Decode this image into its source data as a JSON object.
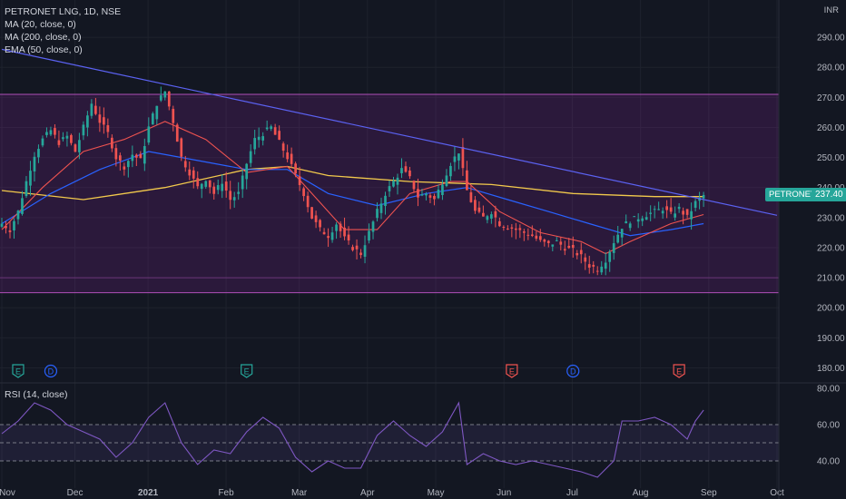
{
  "header": {
    "title": "PETRONET LNG, 1D, NSE",
    "indicators": [
      "MA (20, close, 0)",
      "MA (200, close, 0)",
      "EMA (50, close, 0)"
    ],
    "currency": "INR"
  },
  "price_tag": {
    "symbol": "PETRONET",
    "value": "237.40"
  },
  "rsi": {
    "label": "RSI (14, close)"
  },
  "events": [
    {
      "type": "E",
      "color": "#26a69a",
      "x_label": "Nov"
    },
    {
      "type": "D",
      "color": "#2962ff",
      "x_label": "Dec"
    },
    {
      "type": "E",
      "color": "#26a69a",
      "x_label": "Feb"
    },
    {
      "type": "E",
      "color": "#ef5350",
      "x_label": "Jun"
    },
    {
      "type": "D",
      "color": "#2962ff",
      "x_label": "Jul"
    },
    {
      "type": "E",
      "color": "#ef5350",
      "x_label": "Aug"
    }
  ],
  "colors": {
    "up": "#26a69a",
    "down": "#ef5350",
    "ma20": "#ef5350",
    "ma200": "#2962ff",
    "ema50": "#f2c94c",
    "trend": "#5b62f2",
    "channel": "#b04fb8",
    "rsi": "#7e57c2"
  },
  "chart_data": {
    "type": "candlestick",
    "price_axis": {
      "ticks": [
        180,
        190,
        200,
        210,
        220,
        230,
        240,
        250,
        260,
        270,
        280,
        290
      ],
      "range": [
        175,
        300
      ]
    },
    "rsi_axis": {
      "ticks": [
        40,
        60,
        80
      ],
      "range": [
        25,
        82
      ]
    },
    "x_ticks": [
      "Nov",
      "Dec",
      "2021",
      "Feb",
      "Mar",
      "Apr",
      "May",
      "Jun",
      "Jul",
      "Aug",
      "Sep",
      "Oct"
    ],
    "channel": {
      "top": 271,
      "bottom": 205
    },
    "close_path": [
      [
        0,
        228
      ],
      [
        2,
        226
      ],
      [
        4,
        232
      ],
      [
        6,
        242
      ],
      [
        8,
        251
      ],
      [
        10,
        256
      ],
      [
        12,
        259
      ],
      [
        14,
        255
      ],
      [
        16,
        257
      ],
      [
        18,
        252
      ],
      [
        20,
        260
      ],
      [
        22,
        268
      ],
      [
        24,
        262
      ],
      [
        26,
        258
      ],
      [
        28,
        250
      ],
      [
        30,
        247
      ],
      [
        32,
        251
      ],
      [
        34,
        249
      ],
      [
        36,
        260
      ],
      [
        38,
        268
      ],
      [
        40,
        272
      ],
      [
        42,
        262
      ],
      [
        44,
        250
      ],
      [
        46,
        245
      ],
      [
        48,
        240
      ],
      [
        50,
        243
      ],
      [
        52,
        238
      ],
      [
        54,
        242
      ],
      [
        56,
        236
      ],
      [
        58,
        238
      ],
      [
        60,
        248
      ],
      [
        62,
        256
      ],
      [
        64,
        258
      ],
      [
        66,
        260
      ],
      [
        68,
        255
      ],
      [
        70,
        250
      ],
      [
        72,
        244
      ],
      [
        74,
        238
      ],
      [
        76,
        230
      ],
      [
        78,
        226
      ],
      [
        80,
        224
      ],
      [
        82,
        228
      ],
      [
        84,
        223
      ],
      [
        86,
        220
      ],
      [
        88,
        218
      ],
      [
        90,
        225
      ],
      [
        92,
        232
      ],
      [
        94,
        238
      ],
      [
        96,
        242
      ],
      [
        98,
        246
      ],
      [
        100,
        243
      ],
      [
        102,
        237
      ],
      [
        104,
        238
      ],
      [
        106,
        236
      ],
      [
        108,
        242
      ],
      [
        110,
        248
      ],
      [
        112,
        252
      ],
      [
        114,
        239
      ],
      [
        116,
        232
      ],
      [
        118,
        230
      ],
      [
        120,
        232
      ],
      [
        122,
        228
      ],
      [
        124,
        227
      ],
      [
        126,
        226
      ],
      [
        128,
        225
      ],
      [
        130,
        224
      ],
      [
        132,
        222
      ],
      [
        134,
        221
      ],
      [
        136,
        222
      ],
      [
        138,
        220
      ],
      [
        140,
        219
      ],
      [
        142,
        217
      ],
      [
        144,
        214
      ],
      [
        146,
        213
      ],
      [
        148,
        216
      ],
      [
        150,
        222
      ],
      [
        152,
        227
      ],
      [
        154,
        229
      ],
      [
        156,
        230
      ],
      [
        158,
        231
      ],
      [
        160,
        232
      ],
      [
        162,
        233
      ],
      [
        164,
        231
      ],
      [
        166,
        233
      ],
      [
        168,
        230
      ],
      [
        170,
        235
      ],
      [
        172,
        237.4
      ]
    ],
    "ma20_path": [
      [
        0,
        226
      ],
      [
        10,
        240
      ],
      [
        20,
        252
      ],
      [
        30,
        256
      ],
      [
        40,
        262
      ],
      [
        50,
        256
      ],
      [
        60,
        245
      ],
      [
        70,
        247
      ],
      [
        76,
        238
      ],
      [
        84,
        226
      ],
      [
        92,
        226
      ],
      [
        100,
        238
      ],
      [
        110,
        242
      ],
      [
        114,
        242
      ],
      [
        122,
        232
      ],
      [
        132,
        225
      ],
      [
        142,
        222
      ],
      [
        148,
        218
      ],
      [
        154,
        222
      ],
      [
        164,
        228
      ],
      [
        172,
        231
      ]
    ],
    "ma200_path": [
      [
        0,
        239
      ],
      [
        20,
        236
      ],
      [
        40,
        240
      ],
      [
        60,
        246
      ],
      [
        70,
        247
      ],
      [
        80,
        244
      ],
      [
        100,
        242
      ],
      [
        120,
        241
      ],
      [
        140,
        238
      ],
      [
        160,
        237
      ],
      [
        172,
        237
      ]
    ],
    "ema50_path": [
      [
        0,
        228
      ],
      [
        12,
        238
      ],
      [
        24,
        246
      ],
      [
        36,
        252
      ],
      [
        48,
        249
      ],
      [
        60,
        246
      ],
      [
        70,
        246
      ],
      [
        80,
        238
      ],
      [
        92,
        234
      ],
      [
        104,
        238
      ],
      [
        114,
        240
      ],
      [
        124,
        236
      ],
      [
        134,
        232
      ],
      [
        144,
        228
      ],
      [
        154,
        224
      ],
      [
        164,
        226
      ],
      [
        172,
        228
      ]
    ],
    "trendline": [
      [
        0,
        286
      ],
      [
        172,
        236
      ]
    ],
    "rsi_path": [
      [
        0,
        55
      ],
      [
        4,
        62
      ],
      [
        8,
        72
      ],
      [
        12,
        68
      ],
      [
        16,
        60
      ],
      [
        20,
        56
      ],
      [
        24,
        52
      ],
      [
        28,
        42
      ],
      [
        32,
        50
      ],
      [
        36,
        64
      ],
      [
        40,
        72
      ],
      [
        44,
        50
      ],
      [
        48,
        38
      ],
      [
        52,
        46
      ],
      [
        56,
        44
      ],
      [
        60,
        56
      ],
      [
        64,
        64
      ],
      [
        68,
        58
      ],
      [
        72,
        42
      ],
      [
        76,
        34
      ],
      [
        80,
        40
      ],
      [
        84,
        36
      ],
      [
        88,
        36
      ],
      [
        92,
        54
      ],
      [
        96,
        62
      ],
      [
        100,
        54
      ],
      [
        104,
        48
      ],
      [
        108,
        56
      ],
      [
        112,
        72
      ],
      [
        114,
        38
      ],
      [
        118,
        44
      ],
      [
        122,
        40
      ],
      [
        126,
        38
      ],
      [
        130,
        40
      ],
      [
        134,
        38
      ],
      [
        138,
        36
      ],
      [
        142,
        34
      ],
      [
        146,
        31
      ],
      [
        150,
        40
      ],
      [
        152,
        62
      ],
      [
        156,
        62
      ],
      [
        160,
        64
      ],
      [
        164,
        60
      ],
      [
        168,
        52
      ],
      [
        170,
        62
      ],
      [
        172,
        68
      ]
    ]
  }
}
